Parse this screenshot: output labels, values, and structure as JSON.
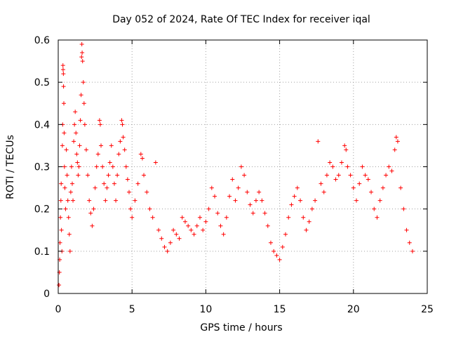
{
  "chart_data": {
    "type": "scatter",
    "title": "Day 052 of 2024, Rate Of TEC Index for receiver iqal",
    "xlabel": "GPS time / hours",
    "ylabel": "ROTI / TECUs",
    "xlim": [
      0,
      25
    ],
    "ylim": [
      0,
      0.6
    ],
    "xticks": [
      0,
      5,
      10,
      15,
      20,
      25
    ],
    "yticks": [
      0,
      0.1,
      0.2,
      0.3,
      0.4,
      0.5,
      0.6
    ],
    "xtick_labels": [
      "0",
      "5",
      "10",
      "15",
      "20",
      "25"
    ],
    "ytick_labels": [
      "0",
      "0.1",
      "0.2",
      "0.3",
      "0.4",
      "0.5",
      "0.6"
    ],
    "grid": true,
    "marker": "+",
    "color": "#ff0000",
    "series": [
      {
        "name": "ROTI",
        "points": [
          [
            0.05,
            0.02
          ],
          [
            0.08,
            0.05
          ],
          [
            0.1,
            0.08
          ],
          [
            0.12,
            0.12
          ],
          [
            0.15,
            0.18
          ],
          [
            0.18,
            0.22
          ],
          [
            0.2,
            0.26
          ],
          [
            0.22,
            0.15
          ],
          [
            0.25,
            0.1
          ],
          [
            0.28,
            0.35
          ],
          [
            0.3,
            0.4
          ],
          [
            0.32,
            0.54
          ],
          [
            0.33,
            0.53
          ],
          [
            0.35,
            0.52
          ],
          [
            0.36,
            0.49
          ],
          [
            0.38,
            0.45
          ],
          [
            0.4,
            0.38
          ],
          [
            0.42,
            0.3
          ],
          [
            0.45,
            0.25
          ],
          [
            0.5,
            0.2
          ],
          [
            0.55,
            0.34
          ],
          [
            0.6,
            0.28
          ],
          [
            0.65,
            0.22
          ],
          [
            0.7,
            0.18
          ],
          [
            0.75,
            0.14
          ],
          [
            0.8,
            0.1
          ],
          [
            0.85,
            0.24
          ],
          [
            0.9,
            0.3
          ],
          [
            0.95,
            0.26
          ],
          [
            1.0,
            0.22
          ],
          [
            1.05,
            0.36
          ],
          [
            1.1,
            0.4
          ],
          [
            1.15,
            0.43
          ],
          [
            1.2,
            0.38
          ],
          [
            1.25,
            0.33
          ],
          [
            1.3,
            0.31
          ],
          [
            1.35,
            0.28
          ],
          [
            1.4,
            0.3
          ],
          [
            1.45,
            0.35
          ],
          [
            1.5,
            0.41
          ],
          [
            1.55,
            0.47
          ],
          [
            1.58,
            0.56
          ],
          [
            1.6,
            0.59
          ],
          [
            1.62,
            0.57
          ],
          [
            1.65,
            0.55
          ],
          [
            1.7,
            0.5
          ],
          [
            1.75,
            0.45
          ],
          [
            1.8,
            0.4
          ],
          [
            1.9,
            0.34
          ],
          [
            2.0,
            0.28
          ],
          [
            2.1,
            0.22
          ],
          [
            2.2,
            0.19
          ],
          [
            2.3,
            0.16
          ],
          [
            2.4,
            0.2
          ],
          [
            2.5,
            0.25
          ],
          [
            2.6,
            0.3
          ],
          [
            2.7,
            0.33
          ],
          [
            2.8,
            0.41
          ],
          [
            2.85,
            0.4
          ],
          [
            2.9,
            0.35
          ],
          [
            3.0,
            0.3
          ],
          [
            3.1,
            0.26
          ],
          [
            3.2,
            0.22
          ],
          [
            3.3,
            0.25
          ],
          [
            3.4,
            0.28
          ],
          [
            3.5,
            0.31
          ],
          [
            3.6,
            0.35
          ],
          [
            3.7,
            0.3
          ],
          [
            3.8,
            0.26
          ],
          [
            3.9,
            0.22
          ],
          [
            4.0,
            0.28
          ],
          [
            4.1,
            0.33
          ],
          [
            4.2,
            0.36
          ],
          [
            4.3,
            0.41
          ],
          [
            4.35,
            0.4
          ],
          [
            4.4,
            0.37
          ],
          [
            4.5,
            0.34
          ],
          [
            4.6,
            0.3
          ],
          [
            4.7,
            0.27
          ],
          [
            4.8,
            0.24
          ],
          [
            4.9,
            0.2
          ],
          [
            5.0,
            0.18
          ],
          [
            5.2,
            0.22
          ],
          [
            5.4,
            0.26
          ],
          [
            5.6,
            0.33
          ],
          [
            5.7,
            0.32
          ],
          [
            5.8,
            0.28
          ],
          [
            6.0,
            0.24
          ],
          [
            6.2,
            0.2
          ],
          [
            6.4,
            0.18
          ],
          [
            6.6,
            0.31
          ],
          [
            6.8,
            0.15
          ],
          [
            7.0,
            0.13
          ],
          [
            7.2,
            0.11
          ],
          [
            7.4,
            0.1
          ],
          [
            7.6,
            0.12
          ],
          [
            7.8,
            0.15
          ],
          [
            8.0,
            0.14
          ],
          [
            8.2,
            0.13
          ],
          [
            8.4,
            0.18
          ],
          [
            8.6,
            0.17
          ],
          [
            8.8,
            0.16
          ],
          [
            9.0,
            0.15
          ],
          [
            9.2,
            0.14
          ],
          [
            9.4,
            0.16
          ],
          [
            9.6,
            0.18
          ],
          [
            9.8,
            0.15
          ],
          [
            10.0,
            0.17
          ],
          [
            10.2,
            0.2
          ],
          [
            10.4,
            0.25
          ],
          [
            10.6,
            0.23
          ],
          [
            10.8,
            0.19
          ],
          [
            11.0,
            0.16
          ],
          [
            11.2,
            0.14
          ],
          [
            11.4,
            0.18
          ],
          [
            11.6,
            0.23
          ],
          [
            11.8,
            0.27
          ],
          [
            12.0,
            0.22
          ],
          [
            12.2,
            0.25
          ],
          [
            12.4,
            0.3
          ],
          [
            12.6,
            0.28
          ],
          [
            12.8,
            0.24
          ],
          [
            13.0,
            0.21
          ],
          [
            13.2,
            0.19
          ],
          [
            13.4,
            0.22
          ],
          [
            13.6,
            0.24
          ],
          [
            13.8,
            0.22
          ],
          [
            14.0,
            0.19
          ],
          [
            14.2,
            0.16
          ],
          [
            14.4,
            0.12
          ],
          [
            14.6,
            0.1
          ],
          [
            14.8,
            0.09
          ],
          [
            15.0,
            0.08
          ],
          [
            15.2,
            0.11
          ],
          [
            15.4,
            0.14
          ],
          [
            15.6,
            0.18
          ],
          [
            15.8,
            0.21
          ],
          [
            16.0,
            0.23
          ],
          [
            16.2,
            0.25
          ],
          [
            16.4,
            0.22
          ],
          [
            16.6,
            0.18
          ],
          [
            16.8,
            0.15
          ],
          [
            17.0,
            0.17
          ],
          [
            17.2,
            0.2
          ],
          [
            17.4,
            0.22
          ],
          [
            17.6,
            0.36
          ],
          [
            17.8,
            0.26
          ],
          [
            18.0,
            0.24
          ],
          [
            18.2,
            0.28
          ],
          [
            18.4,
            0.31
          ],
          [
            18.6,
            0.3
          ],
          [
            18.8,
            0.27
          ],
          [
            19.0,
            0.28
          ],
          [
            19.2,
            0.31
          ],
          [
            19.4,
            0.35
          ],
          [
            19.5,
            0.34
          ],
          [
            19.6,
            0.3
          ],
          [
            19.8,
            0.28
          ],
          [
            20.0,
            0.25
          ],
          [
            20.2,
            0.22
          ],
          [
            20.4,
            0.26
          ],
          [
            20.6,
            0.3
          ],
          [
            20.8,
            0.28
          ],
          [
            21.0,
            0.27
          ],
          [
            21.2,
            0.24
          ],
          [
            21.4,
            0.2
          ],
          [
            21.6,
            0.18
          ],
          [
            21.8,
            0.22
          ],
          [
            22.0,
            0.25
          ],
          [
            22.2,
            0.28
          ],
          [
            22.4,
            0.3
          ],
          [
            22.6,
            0.29
          ],
          [
            22.8,
            0.34
          ],
          [
            22.9,
            0.37
          ],
          [
            23.0,
            0.36
          ],
          [
            23.2,
            0.25
          ],
          [
            23.4,
            0.2
          ],
          [
            23.6,
            0.15
          ],
          [
            23.8,
            0.12
          ],
          [
            24.0,
            0.1
          ]
        ]
      }
    ]
  }
}
